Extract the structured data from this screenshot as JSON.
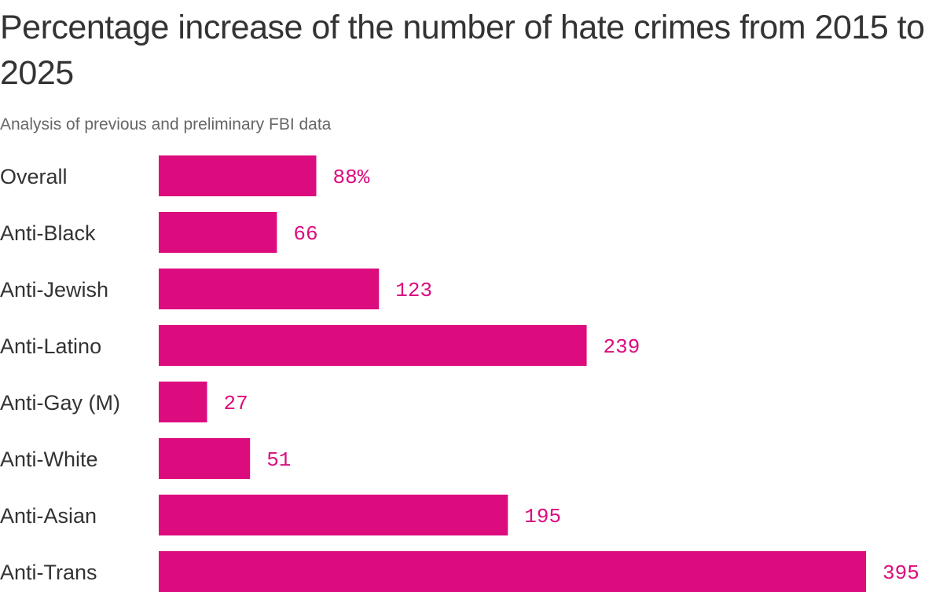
{
  "chart_data": {
    "type": "bar",
    "orientation": "horizontal",
    "title": "Percentage increase of the number of hate crimes from 2015 to 2025",
    "subtitle": "Analysis of previous and preliminary FBI data",
    "categories": [
      "Overall",
      "Anti-Black",
      "Anti-Jewish",
      "Anti-Latino",
      "Anti-Gay (M)",
      "Anti-White",
      "Anti-Asian",
      "Anti-Trans"
    ],
    "values": [
      88,
      66,
      123,
      239,
      27,
      51,
      195,
      395
    ],
    "data_labels": [
      "88%",
      "66",
      "123",
      "239",
      "27",
      "51",
      "195",
      "395"
    ],
    "xlim": [
      0,
      395
    ],
    "grid": false,
    "bar_color": "#dc0c7e"
  }
}
